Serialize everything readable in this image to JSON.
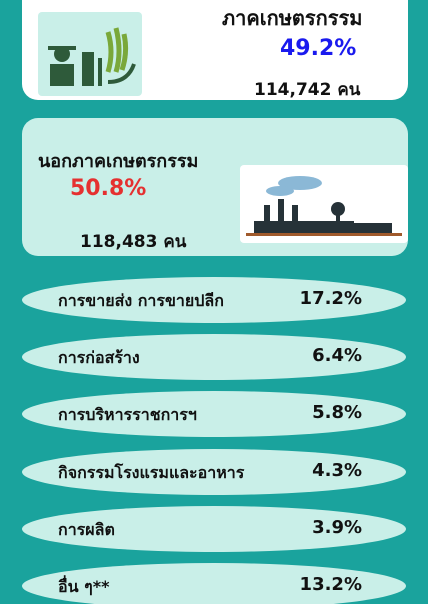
{
  "agriculture": {
    "title": "ภาคเกษตรกรรม",
    "percent": "49.2%",
    "people": "114,742 คน"
  },
  "non_agriculture": {
    "title": "นอกภาคเกษตรกรรม",
    "percent": "50.8%",
    "people": "118,483 คน"
  },
  "sectors": [
    {
      "label": "การขายส่ง การขายปลีก",
      "percent": "17.2%"
    },
    {
      "label": "การก่อสร้าง",
      "percent": "6.4%"
    },
    {
      "label": "การบริหารราชการฯ",
      "percent": "5.8%"
    },
    {
      "label": "กิจกรรมโรงแรมและอาหาร",
      "percent": "4.3%"
    },
    {
      "label": "การผลิต",
      "percent": "3.9%"
    },
    {
      "label": "อื่น ๆ**",
      "percent": "13.2%"
    }
  ]
}
